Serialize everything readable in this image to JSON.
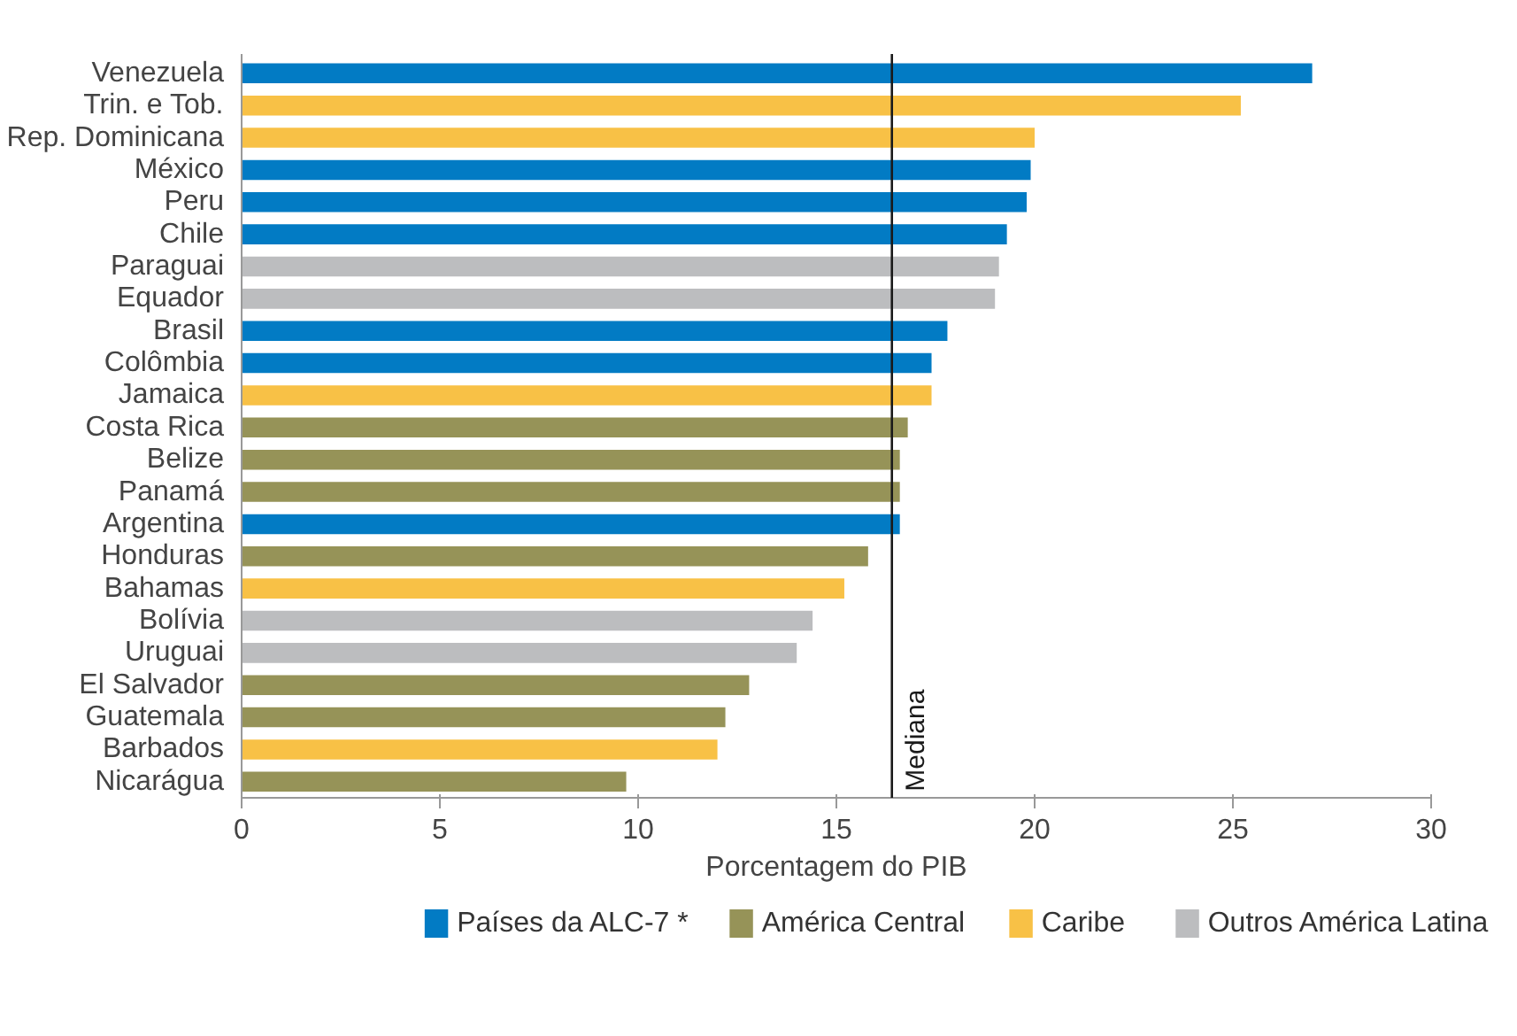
{
  "chart_data": {
    "type": "bar",
    "orientation": "horizontal",
    "xlabel": "Porcentagem do PIB",
    "categories": [
      "Venezuela",
      "Trin. e Tob.",
      "Rep. Dominicana",
      "México",
      "Peru",
      "Chile",
      "Paraguai",
      "Equador",
      "Brasil",
      "Colômbia",
      "Jamaica",
      "Costa Rica",
      "Belize",
      "Panamá",
      "Argentina",
      "Honduras",
      "Bahamas",
      "Bolívia",
      "Uruguai",
      "El Salvador",
      "Guatemala",
      "Barbados",
      "Nicarágua"
    ],
    "series": [
      {
        "name": "Países da ALC-7 *",
        "color": "#027bc4",
        "values": [
          27.0,
          null,
          null,
          19.9,
          19.8,
          19.3,
          null,
          null,
          17.8,
          17.4,
          null,
          null,
          null,
          null,
          16.6,
          null,
          null,
          null,
          null,
          null,
          null,
          null,
          null
        ]
      },
      {
        "name": "América Central",
        "color": "#969358",
        "values": [
          null,
          null,
          null,
          null,
          null,
          null,
          null,
          null,
          null,
          null,
          null,
          16.8,
          16.6,
          16.6,
          null,
          15.8,
          null,
          null,
          null,
          12.8,
          12.2,
          null,
          9.7
        ]
      },
      {
        "name": "Caribe",
        "color": "#f8c146",
        "values": [
          null,
          25.2,
          20.0,
          null,
          null,
          null,
          null,
          null,
          null,
          null,
          17.4,
          null,
          null,
          null,
          null,
          null,
          15.2,
          null,
          null,
          null,
          null,
          12.0,
          null
        ]
      },
      {
        "name": "Outros América Latina",
        "color": "#bcbdbf",
        "values": [
          null,
          null,
          null,
          null,
          null,
          null,
          19.1,
          19.0,
          null,
          null,
          null,
          null,
          null,
          null,
          null,
          null,
          null,
          14.4,
          14.0,
          null,
          null,
          null,
          null
        ]
      }
    ],
    "xlim": [
      0,
      30
    ],
    "xticks": [
      0,
      5,
      10,
      15,
      20,
      25,
      30
    ],
    "grid": false,
    "legend": "bottom",
    "ref_lines": [
      {
        "axis": "x",
        "value": 16.4,
        "label": "Mediana",
        "color": "#1a1a1a"
      }
    ]
  }
}
